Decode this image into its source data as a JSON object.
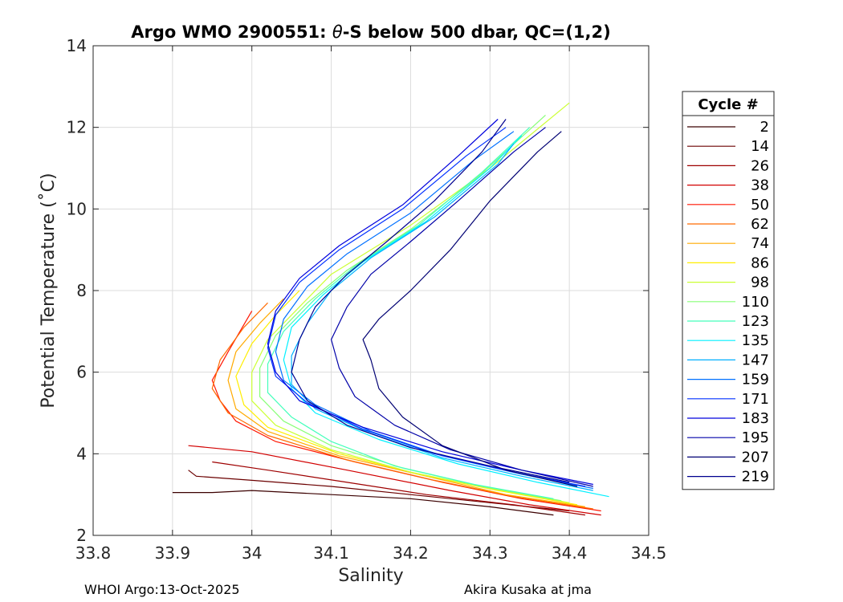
{
  "chart_data": {
    "type": "line",
    "title": "Argo WMO 2900551: θ-S below 500 dbar,  QC=(1,2)",
    "title_parts": {
      "prefix": "Argo WMO 2900551: ",
      "theta": "θ",
      "suffix": "-S below 500 dbar,  QC=(1,2)"
    },
    "xlabel": "Salinity",
    "ylabel": "Potential Temperature (˚C)",
    "xlim": [
      33.8,
      34.5
    ],
    "ylim": [
      2,
      14
    ],
    "xticks": [
      33.8,
      33.9,
      34.0,
      34.1,
      34.2,
      34.3,
      34.4,
      34.5
    ],
    "xtick_labels": [
      "33.8",
      "33.9",
      "34",
      "34.1",
      "34.2",
      "34.3",
      "34.4",
      "34.5"
    ],
    "yticks": [
      2,
      4,
      6,
      8,
      10,
      12,
      14
    ],
    "ytick_labels": [
      "2",
      "4",
      "6",
      "8",
      "10",
      "12",
      "14"
    ],
    "grid": true,
    "legend": {
      "title": "Cycle #",
      "position": "outside-right",
      "entries": [
        {
          "label": "2",
          "color": "#3b0000"
        },
        {
          "label": "14",
          "color": "#6b0000"
        },
        {
          "label": "26",
          "color": "#9e0000"
        },
        {
          "label": "38",
          "color": "#d20000"
        },
        {
          "label": "50",
          "color": "#ff1500"
        },
        {
          "label": "62",
          "color": "#ff6a00"
        },
        {
          "label": "74",
          "color": "#ffaa00"
        },
        {
          "label": "86",
          "color": "#ffee00"
        },
        {
          "label": "98",
          "color": "#ccff33"
        },
        {
          "label": "110",
          "color": "#88ff77"
        },
        {
          "label": "123",
          "color": "#44ffbb"
        },
        {
          "label": "135",
          "color": "#00f0ff"
        },
        {
          "label": "147",
          "color": "#00b0ff"
        },
        {
          "label": "159",
          "color": "#0070ff"
        },
        {
          "label": "171",
          "color": "#0030ff"
        },
        {
          "label": "183",
          "color": "#0000dd"
        },
        {
          "label": "195",
          "color": "#0000a8"
        },
        {
          "label": "207",
          "color": "#000073"
        },
        {
          "label": "219",
          "color": "#00008f"
        }
      ]
    },
    "series": [
      {
        "name": "2",
        "color": "#3b0000",
        "x": [
          34.38,
          34.3,
          34.2,
          34.1,
          34.0,
          33.95,
          33.9
        ],
        "y": [
          2.5,
          2.7,
          2.9,
          3.0,
          3.1,
          3.05,
          3.05
        ]
      },
      {
        "name": "14",
        "color": "#6b0000",
        "x": [
          34.4,
          34.3,
          34.2,
          34.1,
          34.0,
          33.93,
          33.92
        ],
        "y": [
          2.6,
          2.8,
          3.0,
          3.2,
          3.35,
          3.45,
          3.6
        ]
      },
      {
        "name": "26",
        "color": "#9e0000",
        "x": [
          34.42,
          34.33,
          34.22,
          34.12,
          34.02,
          33.95
        ],
        "y": [
          2.5,
          2.75,
          3.0,
          3.3,
          3.6,
          3.8
        ]
      },
      {
        "name": "38",
        "color": "#d20000",
        "x": [
          34.44,
          34.35,
          34.25,
          34.12,
          34.0,
          33.92
        ],
        "y": [
          2.5,
          2.75,
          3.1,
          3.6,
          4.05,
          4.2
        ]
      },
      {
        "name": "50",
        "color": "#ff1500",
        "x": [
          34.44,
          34.34,
          34.24,
          34.13,
          34.03,
          33.98,
          33.96,
          33.95,
          33.97,
          34.0
        ],
        "y": [
          2.6,
          2.9,
          3.3,
          3.8,
          4.3,
          4.8,
          5.3,
          5.8,
          6.5,
          7.5
        ]
      },
      {
        "name": "62",
        "color": "#ff6a00",
        "x": [
          34.43,
          34.33,
          34.23,
          34.12,
          34.02,
          33.97,
          33.95,
          33.96,
          33.99,
          34.02
        ],
        "y": [
          2.65,
          2.95,
          3.35,
          3.85,
          4.45,
          5.0,
          5.6,
          6.3,
          7.1,
          7.7
        ]
      },
      {
        "name": "74",
        "color": "#ffaa00",
        "x": [
          34.42,
          34.32,
          34.22,
          34.11,
          34.02,
          33.98,
          33.97,
          33.98,
          34.01,
          34.04
        ],
        "y": [
          2.7,
          3.0,
          3.45,
          3.95,
          4.55,
          5.1,
          5.8,
          6.5,
          7.2,
          7.8
        ]
      },
      {
        "name": "86",
        "color": "#ffee00",
        "x": [
          34.41,
          34.31,
          34.21,
          34.11,
          34.02,
          33.99,
          33.98,
          34.0,
          34.03,
          34.06
        ],
        "y": [
          2.75,
          3.1,
          3.5,
          4.0,
          4.65,
          5.2,
          5.9,
          6.7,
          7.4,
          8.0
        ]
      },
      {
        "name": "98",
        "color": "#ccff33",
        "x": [
          34.4,
          34.3,
          34.2,
          34.1,
          34.03,
          34.0,
          34.0,
          34.02,
          34.06,
          34.1,
          34.2,
          34.3,
          34.4
        ],
        "y": [
          2.8,
          3.15,
          3.55,
          4.1,
          4.7,
          5.3,
          6.0,
          6.8,
          7.6,
          8.4,
          9.6,
          11.0,
          12.6
        ]
      },
      {
        "name": "110",
        "color": "#88ff77",
        "x": [
          34.39,
          34.29,
          34.19,
          34.1,
          34.04,
          34.01,
          34.01,
          34.03,
          34.07,
          34.12,
          34.2,
          34.28,
          34.37
        ],
        "y": [
          2.85,
          3.2,
          3.65,
          4.2,
          4.8,
          5.4,
          6.1,
          6.9,
          7.7,
          8.5,
          9.5,
          10.7,
          12.3
        ]
      },
      {
        "name": "123",
        "color": "#44ffbb",
        "x": [
          34.38,
          34.28,
          34.18,
          34.1,
          34.05,
          34.02,
          34.02,
          34.04,
          34.08,
          34.13,
          34.21,
          34.29,
          34.35
        ],
        "y": [
          2.9,
          3.25,
          3.7,
          4.3,
          4.9,
          5.5,
          6.2,
          7.0,
          7.8,
          8.6,
          9.6,
          10.9,
          12.0
        ]
      },
      {
        "name": "135",
        "color": "#00f0ff",
        "x": [
          34.45,
          34.36,
          34.26,
          34.16,
          34.08,
          34.05,
          34.04,
          34.05,
          34.09,
          34.14,
          34.22,
          34.3,
          34.34
        ],
        "y": [
          2.95,
          3.3,
          3.75,
          4.35,
          5.0,
          5.6,
          6.3,
          7.1,
          7.9,
          8.7,
          9.7,
          11.0,
          11.8
        ]
      },
      {
        "name": "147",
        "color": "#00b0ff",
        "x": [
          34.43,
          34.34,
          34.24,
          34.15,
          34.08,
          34.05,
          34.05,
          34.07,
          34.1,
          34.15,
          34.23,
          34.31,
          34.33
        ],
        "y": [
          3.1,
          3.45,
          3.9,
          4.5,
          5.1,
          5.7,
          6.4,
          7.2,
          8.0,
          8.8,
          9.8,
          11.1,
          11.6
        ]
      },
      {
        "name": "159",
        "color": "#0070ff",
        "x": [
          34.43,
          34.34,
          34.24,
          34.15,
          34.08,
          34.04,
          34.03,
          34.04,
          34.07,
          34.12,
          34.2,
          34.28,
          34.33
        ],
        "y": [
          3.15,
          3.5,
          3.95,
          4.55,
          5.2,
          5.8,
          6.5,
          7.3,
          8.1,
          8.9,
          9.9,
          11.2,
          11.9
        ]
      },
      {
        "name": "171",
        "color": "#0030ff",
        "x": [
          34.42,
          34.33,
          34.23,
          34.14,
          34.07,
          34.03,
          34.02,
          34.03,
          34.06,
          34.11,
          34.19,
          34.27,
          34.32
        ],
        "y": [
          3.2,
          3.55,
          4.0,
          4.6,
          5.25,
          5.9,
          6.6,
          7.4,
          8.2,
          9.0,
          10.0,
          11.3,
          12.0
        ]
      },
      {
        "name": "183",
        "color": "#0000dd",
        "x": [
          34.43,
          34.34,
          34.24,
          34.14,
          34.06,
          34.03,
          34.02,
          34.03,
          34.06,
          34.11,
          34.19,
          34.26,
          34.31
        ],
        "y": [
          3.25,
          3.6,
          4.05,
          4.65,
          5.3,
          6.0,
          6.7,
          7.5,
          8.3,
          9.1,
          10.1,
          11.3,
          12.2
        ]
      },
      {
        "name": "195",
        "color": "#0000a8",
        "x": [
          34.43,
          34.34,
          34.25,
          34.18,
          34.13,
          34.11,
          34.1,
          34.12,
          34.15,
          34.2,
          34.26,
          34.33,
          34.37
        ],
        "y": [
          3.2,
          3.6,
          4.1,
          4.7,
          5.4,
          6.1,
          6.8,
          7.6,
          8.4,
          9.2,
          10.2,
          11.4,
          12.0
        ]
      },
      {
        "name": "207",
        "color": "#000073",
        "x": [
          34.41,
          34.32,
          34.24,
          34.19,
          34.16,
          34.15,
          34.14,
          34.16,
          34.2,
          34.25,
          34.3,
          34.36,
          34.39
        ],
        "y": [
          3.2,
          3.6,
          4.2,
          4.9,
          5.6,
          6.3,
          6.8,
          7.3,
          8.0,
          9.0,
          10.2,
          11.4,
          11.9
        ]
      },
      {
        "name": "219",
        "color": "#00008f",
        "x": [
          34.4,
          34.3,
          34.2,
          34.12,
          34.07,
          34.05,
          34.06,
          34.08,
          34.12,
          34.17,
          34.23,
          34.29,
          34.32
        ],
        "y": [
          3.3,
          3.7,
          4.15,
          4.7,
          5.3,
          6.0,
          6.8,
          7.6,
          8.4,
          9.2,
          10.2,
          11.4,
          12.2
        ]
      }
    ]
  },
  "footer": {
    "left": "WHOI Argo:13-Oct-2025",
    "right": "Akira Kusaka at jma"
  }
}
